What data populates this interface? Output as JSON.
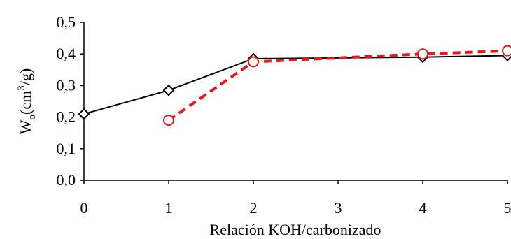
{
  "chart_data": {
    "type": "line",
    "xlabel": "Relación KOH/carbonizado",
    "ylabel": {
      "base": "W",
      "sub": "o",
      "unit_pre": "(cm",
      "unit_sup": "3",
      "unit_post": "/g)"
    },
    "xlim": [
      0,
      5
    ],
    "ylim": [
      0,
      0.5
    ],
    "x_ticks": [
      0,
      1,
      2,
      3,
      4,
      5
    ],
    "x_tick_labels": [
      "0",
      "1",
      "2",
      "3",
      "4",
      "5"
    ],
    "y_ticks": [
      0,
      0.1,
      0.2,
      0.3,
      0.4,
      0.5
    ],
    "y_tick_labels": [
      "0,0",
      "0,1",
      "0,2",
      "0,3",
      "0,4",
      "0,5"
    ],
    "grid": false,
    "legend": "none",
    "series": [
      {
        "color": "#000000",
        "line_style": "solid",
        "marker": "diamond",
        "x": [
          0,
          1,
          2,
          4,
          5
        ],
        "values": [
          0.21,
          0.285,
          0.385,
          0.39,
          0.395
        ]
      },
      {
        "color": "#e8191a",
        "line_style": "dashed",
        "marker": "circle",
        "x": [
          1,
          2,
          4,
          5
        ],
        "values": [
          0.19,
          0.375,
          0.4,
          0.41
        ]
      }
    ]
  }
}
